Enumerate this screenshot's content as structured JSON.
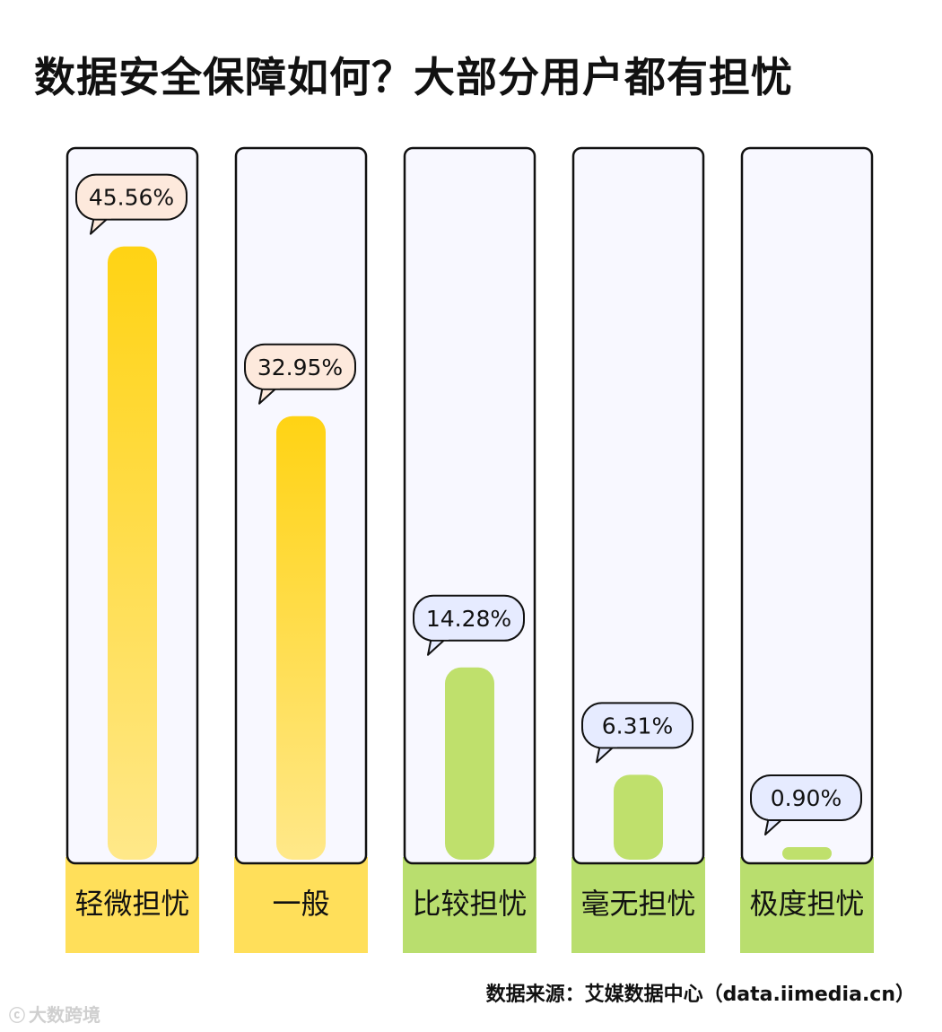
{
  "title": "数据安全保障如何？大部分用户都有担忧",
  "source": "数据来源：艾媒数据中心（data.iimedia.cn）",
  "watermark": "大数跨境",
  "colors": {
    "yellow_top": "#ffd314",
    "yellow_bottom": "#ffe889",
    "yellow_label_bg": "#ffdf5a",
    "green": "#bfe06c",
    "green_label_bg": "#b9de6e",
    "panel_bg": "#f8f8ff",
    "bubble_yellow": "#fde9dc",
    "bubble_green": "#e6ebff"
  },
  "chart_data": {
    "type": "bar",
    "title": "数据安全保障如何？大部分用户都有担忧",
    "categories": [
      "轻微担忧",
      "一般",
      "比较担忧",
      "毫无担忧",
      "极度担忧"
    ],
    "values": [
      45.56,
      32.95,
      14.28,
      6.31,
      0.9
    ],
    "value_labels": [
      "45.56%",
      "32.95%",
      "14.28%",
      "6.31%",
      "0.90%"
    ],
    "bar_colors": [
      "yellow",
      "yellow",
      "green",
      "green",
      "green"
    ],
    "ylim": [
      0,
      50
    ]
  }
}
